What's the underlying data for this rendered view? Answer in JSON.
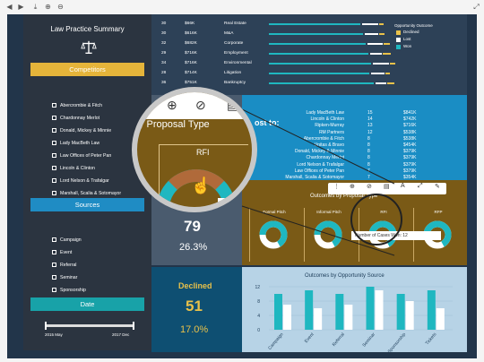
{
  "sidebar": {
    "title": "Law Practice Summary",
    "competitors_header": "Competitors",
    "competitors": [
      "Abercrombie & Fitch",
      "Chardonnay Merlot",
      "Donald, Mickey & Minnie",
      "Lady MacBeth Law",
      "Law Offices of Peter Pan",
      "Lincoln & Clinton",
      "Lord Nelson & Trafalgar",
      "Marshall, Scalia & Sotomayor"
    ],
    "sources_header": "Sources",
    "sources": [
      "Campaign",
      "Event",
      "Referral",
      "Seminar",
      "Sponsorship"
    ],
    "date_header": "Date",
    "date_start": "2015 May",
    "date_end": "2017 Dec"
  },
  "bar_table": {
    "rows": [
      {
        "n": "30",
        "amount": "$66K",
        "label": "Real Estate"
      },
      {
        "n": "30",
        "amount": "$616K",
        "label": "M&A"
      },
      {
        "n": "32",
        "amount": "$682K",
        "label": "Corporate"
      },
      {
        "n": "29",
        "amount": "$716K",
        "label": "Employment"
      },
      {
        "n": "34",
        "amount": "$716K",
        "label": "Environmental"
      },
      {
        "n": "28",
        "amount": "$714K",
        "label": "Litigation"
      },
      {
        "n": "36",
        "amount": "$751K",
        "label": "Bankruptcy"
      }
    ],
    "legend_title": "Opportunity Outcome",
    "legend": [
      {
        "label": "Declined",
        "color": "#e8c14a"
      },
      {
        "label": "Lost",
        "color": "#ffffff"
      },
      {
        "label": "Won",
        "color": "#1fb7c0"
      }
    ]
  },
  "cost_panel": {
    "title_fragment": "ost to:",
    "rows": [
      {
        "name": "Lady MacBeth Law",
        "n": "15",
        "amount": "$841K"
      },
      {
        "name": "Lincoln & Clinton",
        "n": "14",
        "amount": "$742K"
      },
      {
        "name": "Ripken-Murray",
        "n": "13",
        "amount": "$716K"
      },
      {
        "name": "RM Partners",
        "n": "12",
        "amount": "$538K"
      },
      {
        "name": "Abercrombie & Fitch",
        "n": "8",
        "amount": "$538K"
      },
      {
        "name": "Unitas & Bravo",
        "n": "8",
        "amount": "$454K"
      },
      {
        "name": "Donald, Mickey & Minnie",
        "n": "8",
        "amount": "$379K"
      },
      {
        "name": "Chardonnay Merlot",
        "n": "8",
        "amount": "$379K"
      },
      {
        "name": "Lord Nelson & Trafalgar",
        "n": "8",
        "amount": "$379K"
      },
      {
        "name": "Law Offices of Peter Pan",
        "n": "7",
        "amount": "$379K"
      },
      {
        "name": "Marshall, Scalia & Sotomayor",
        "n": "7",
        "amount": "$354K"
      }
    ]
  },
  "stats": {
    "won_count": "79",
    "won_pct": "26.3%",
    "declined_label": "Declined",
    "declined_count": "51",
    "declined_pct": "17.0%"
  },
  "proposal": {
    "title": "Outcomes by Proposal Type",
    "types": [
      "Formal Pitch",
      "Informal Pitch",
      "RFI",
      "RFP"
    ],
    "tooltip": "Number of Cases Won: 12"
  },
  "lens": {
    "title": "y Proposal Type",
    "column": "RFI",
    "peek": "N"
  },
  "source_chart": {
    "title": "Outcomes by Opportunity Source",
    "type": "bar",
    "categories": [
      "Campaign",
      "Event",
      "Referral",
      "Seminar",
      "Sponsorship",
      "Tickets"
    ],
    "series": [
      {
        "values": [
          10,
          11,
          10,
          12,
          10,
          11
        ],
        "color": "#1fb7c0"
      },
      {
        "values": [
          7,
          6,
          7,
          11,
          8,
          6
        ],
        "color": "#ffffff"
      }
    ],
    "yticks": [
      "0",
      "4",
      "8",
      "12"
    ],
    "ylim": [
      0,
      12
    ]
  }
}
